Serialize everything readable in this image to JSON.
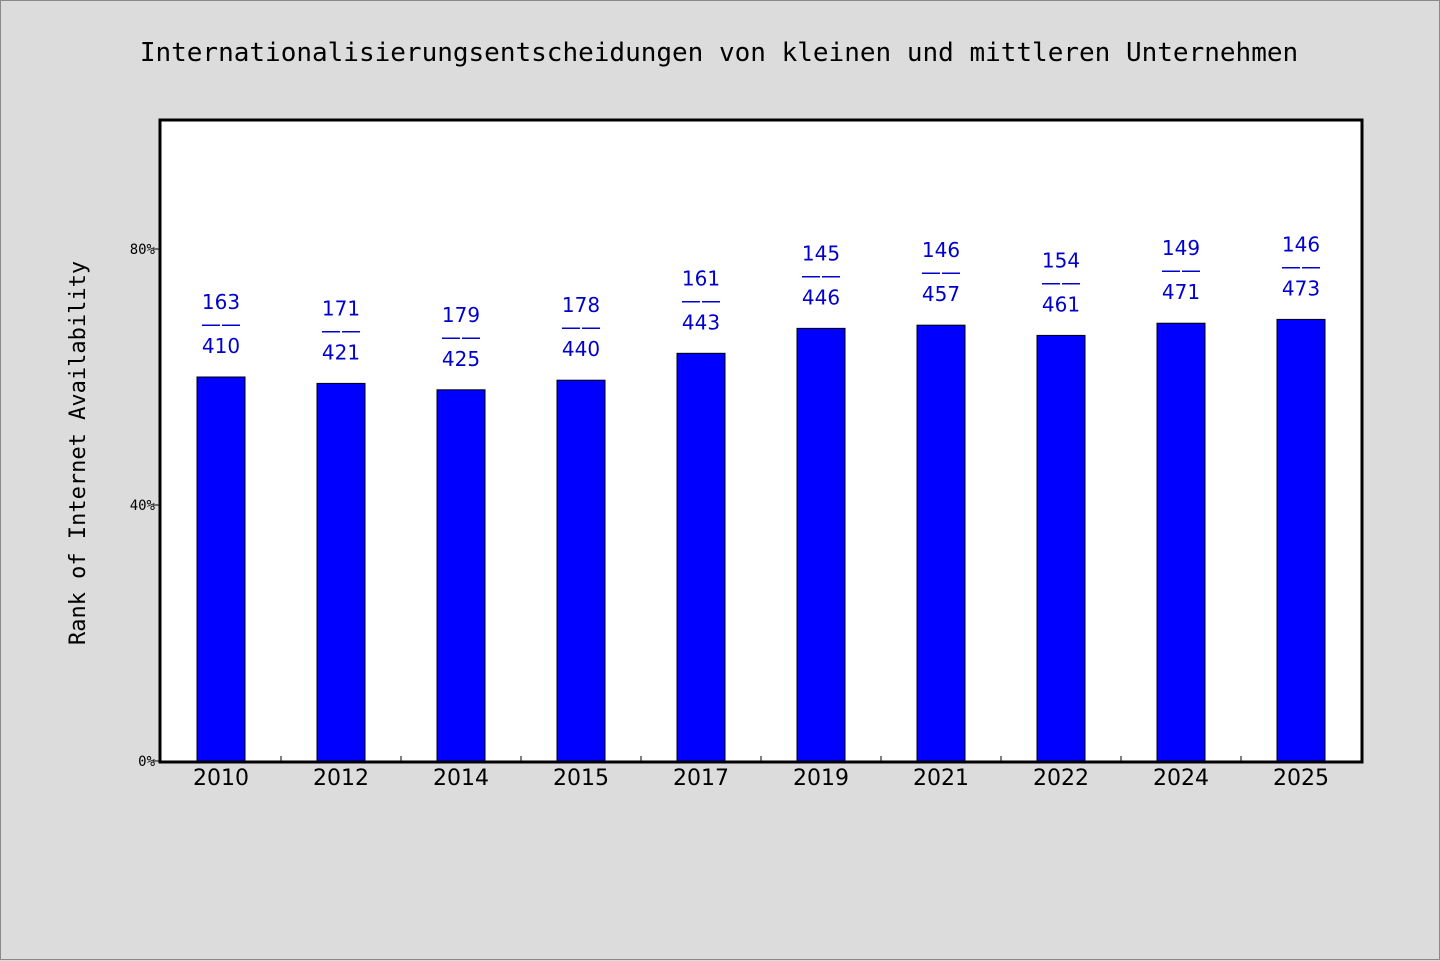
{
  "chart_data": {
    "type": "bar",
    "title": "Internationalisierungsentscheidungen von kleinen und mittleren Unternehmen",
    "xlabel": "",
    "ylabel": "Rank of Internet Availability",
    "categories": [
      "2010",
      "2012",
      "2014",
      "2015",
      "2017",
      "2019",
      "2021",
      "2022",
      "2024",
      "2025"
    ],
    "values": [
      0.6,
      0.59,
      0.58,
      0.595,
      0.637,
      0.676,
      0.681,
      0.665,
      0.684,
      0.69
    ],
    "annotations": [
      [
        "163",
        "410"
      ],
      [
        "171",
        "421"
      ],
      [
        "179",
        "425"
      ],
      [
        "178",
        "440"
      ],
      [
        "161",
        "443"
      ],
      [
        "145",
        "446"
      ],
      [
        "146",
        "457"
      ],
      [
        "154",
        "461"
      ],
      [
        "149",
        "471"
      ],
      [
        "146",
        "473"
      ]
    ],
    "annotation_separator": "——",
    "ylim": [
      0,
      1
    ],
    "yticks": [
      0,
      0.4,
      0.8
    ],
    "ytick_labels": [
      "0%",
      "40%",
      "80%"
    ],
    "bar_color": "#0000ff",
    "label_color": "#0000cc",
    "grid": false,
    "legend": "none"
  }
}
